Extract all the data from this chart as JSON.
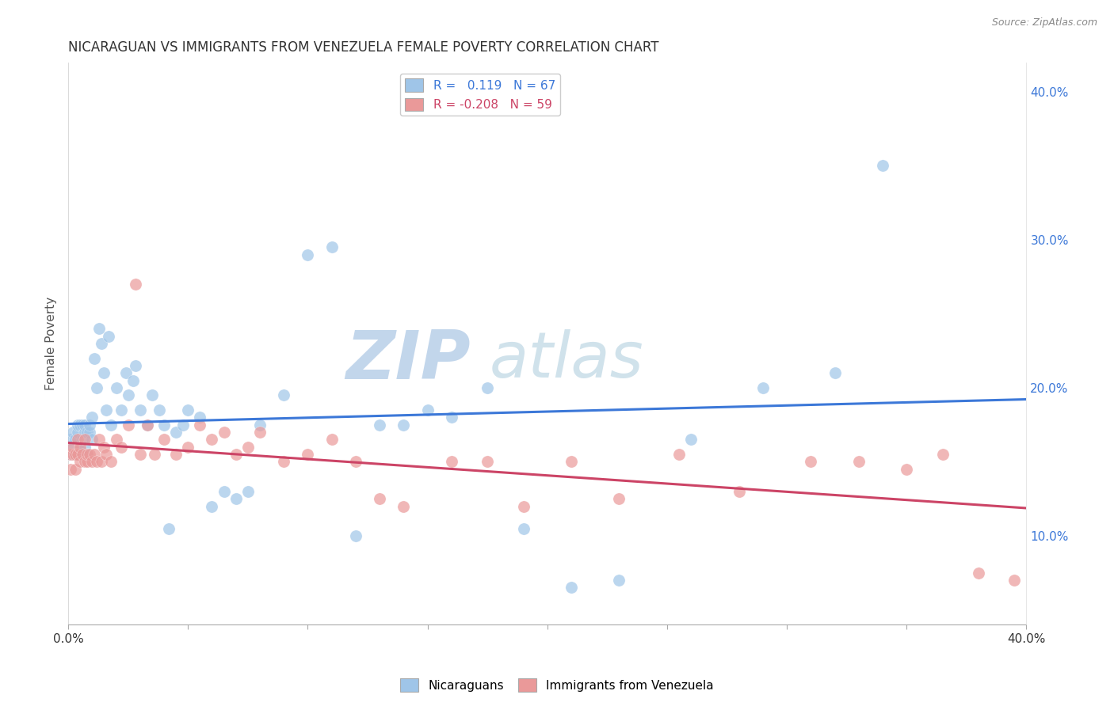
{
  "title": "NICARAGUAN VS IMMIGRANTS FROM VENEZUELA FEMALE POVERTY CORRELATION CHART",
  "source": "Source: ZipAtlas.com",
  "ylabel": "Female Poverty",
  "right_yticks": [
    "40.0%",
    "30.0%",
    "20.0%",
    "10.0%"
  ],
  "right_ytick_vals": [
    0.4,
    0.3,
    0.2,
    0.1
  ],
  "r_nicaraguan": 0.119,
  "n_nicaraguan": 67,
  "r_venezuela": -0.208,
  "n_venezuela": 59,
  "color_nicaraguan": "#9fc5e8",
  "color_venezuela": "#ea9999",
  "color_line_nicaraguan": "#3c78d8",
  "color_line_venezuela": "#cc4466",
  "color_right_axis": "#3c78d8",
  "color_watermark": "#d6e4f0",
  "xlim": [
    0.0,
    0.4
  ],
  "ylim": [
    0.04,
    0.42
  ],
  "nicaraguan_x": [
    0.001,
    0.001,
    0.002,
    0.002,
    0.003,
    0.003,
    0.004,
    0.004,
    0.005,
    0.005,
    0.005,
    0.006,
    0.006,
    0.007,
    0.007,
    0.007,
    0.008,
    0.008,
    0.009,
    0.009,
    0.01,
    0.01,
    0.011,
    0.012,
    0.013,
    0.014,
    0.015,
    0.016,
    0.017,
    0.018,
    0.02,
    0.022,
    0.024,
    0.025,
    0.027,
    0.028,
    0.03,
    0.033,
    0.035,
    0.038,
    0.04,
    0.042,
    0.045,
    0.048,
    0.05,
    0.055,
    0.06,
    0.065,
    0.07,
    0.075,
    0.08,
    0.09,
    0.1,
    0.11,
    0.12,
    0.13,
    0.14,
    0.15,
    0.16,
    0.175,
    0.19,
    0.21,
    0.23,
    0.26,
    0.29,
    0.32,
    0.34
  ],
  "nicaraguan_y": [
    0.155,
    0.165,
    0.16,
    0.17,
    0.155,
    0.165,
    0.17,
    0.175,
    0.155,
    0.16,
    0.175,
    0.165,
    0.175,
    0.16,
    0.17,
    0.175,
    0.155,
    0.17,
    0.17,
    0.175,
    0.165,
    0.18,
    0.22,
    0.2,
    0.24,
    0.23,
    0.21,
    0.185,
    0.235,
    0.175,
    0.2,
    0.185,
    0.21,
    0.195,
    0.205,
    0.215,
    0.185,
    0.175,
    0.195,
    0.185,
    0.175,
    0.105,
    0.17,
    0.175,
    0.185,
    0.18,
    0.12,
    0.13,
    0.125,
    0.13,
    0.175,
    0.195,
    0.29,
    0.295,
    0.1,
    0.175,
    0.175,
    0.185,
    0.18,
    0.2,
    0.105,
    0.065,
    0.07,
    0.165,
    0.2,
    0.21,
    0.35
  ],
  "venezuela_x": [
    0.001,
    0.001,
    0.002,
    0.002,
    0.003,
    0.003,
    0.004,
    0.004,
    0.005,
    0.005,
    0.006,
    0.007,
    0.007,
    0.008,
    0.008,
    0.009,
    0.01,
    0.011,
    0.012,
    0.013,
    0.014,
    0.015,
    0.016,
    0.018,
    0.02,
    0.022,
    0.025,
    0.028,
    0.03,
    0.033,
    0.036,
    0.04,
    0.045,
    0.05,
    0.055,
    0.06,
    0.065,
    0.07,
    0.075,
    0.08,
    0.09,
    0.1,
    0.11,
    0.12,
    0.13,
    0.14,
    0.16,
    0.175,
    0.19,
    0.21,
    0.23,
    0.255,
    0.28,
    0.31,
    0.33,
    0.35,
    0.365,
    0.38,
    0.395
  ],
  "venezuela_y": [
    0.145,
    0.155,
    0.155,
    0.16,
    0.145,
    0.155,
    0.155,
    0.165,
    0.15,
    0.16,
    0.155,
    0.15,
    0.165,
    0.15,
    0.155,
    0.155,
    0.15,
    0.155,
    0.15,
    0.165,
    0.15,
    0.16,
    0.155,
    0.15,
    0.165,
    0.16,
    0.175,
    0.27,
    0.155,
    0.175,
    0.155,
    0.165,
    0.155,
    0.16,
    0.175,
    0.165,
    0.17,
    0.155,
    0.16,
    0.17,
    0.15,
    0.155,
    0.165,
    0.15,
    0.125,
    0.12,
    0.15,
    0.15,
    0.12,
    0.15,
    0.125,
    0.155,
    0.13,
    0.15,
    0.15,
    0.145,
    0.155,
    0.075,
    0.07
  ]
}
